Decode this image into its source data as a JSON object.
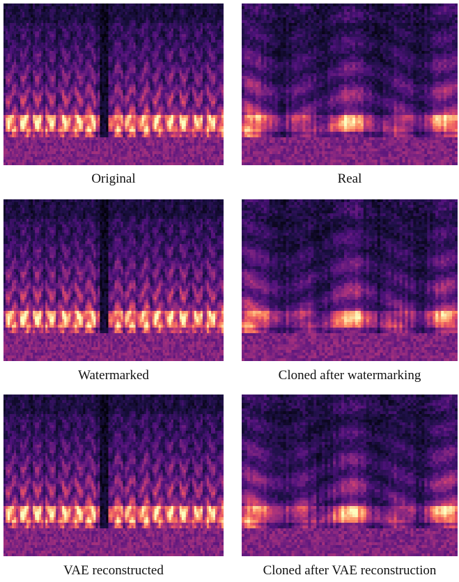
{
  "figure": {
    "panels": [
      {
        "caption": "Original",
        "kind": "synthetic"
      },
      {
        "caption": "Real",
        "kind": "natural"
      },
      {
        "caption": "Watermarked",
        "kind": "synthetic"
      },
      {
        "caption": "Cloned after watermarking",
        "kind": "natural"
      },
      {
        "caption": "VAE reconstructed",
        "kind": "synthetic"
      },
      {
        "caption": "Cloned after VAE reconstruction",
        "kind": "natural"
      }
    ],
    "colormap": [
      "#000004",
      "#1c1044",
      "#4f127b",
      "#812581",
      "#b5367a",
      "#e55064",
      "#fb8761",
      "#fec287",
      "#fcfdbf"
    ]
  }
}
